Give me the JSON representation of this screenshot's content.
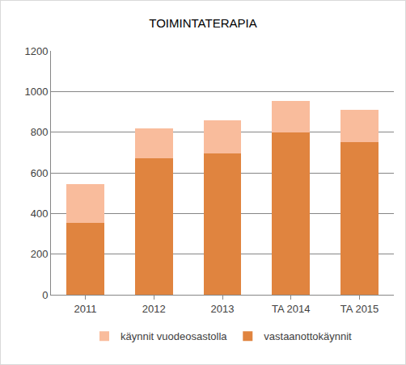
{
  "chart_data": {
    "type": "bar",
    "title": "TOIMINTATERAPIA",
    "categories": [
      "2011",
      "2012",
      "2013",
      "TA 2014",
      "TA 2015"
    ],
    "series": [
      {
        "name": "vastaanottokäynnit",
        "color": "#e0843f",
        "values": [
          355,
          670,
          695,
          800,
          750
        ]
      },
      {
        "name": "käynnit vuodeosastolla",
        "color": "#f9bc9c",
        "values": [
          190,
          150,
          165,
          155,
          160
        ]
      }
    ],
    "stacked": true,
    "ylim": [
      0,
      1200
    ],
    "yticks": [
      0,
      200,
      400,
      600,
      800,
      1000,
      1200
    ],
    "grid": true,
    "legend": "bottom"
  }
}
